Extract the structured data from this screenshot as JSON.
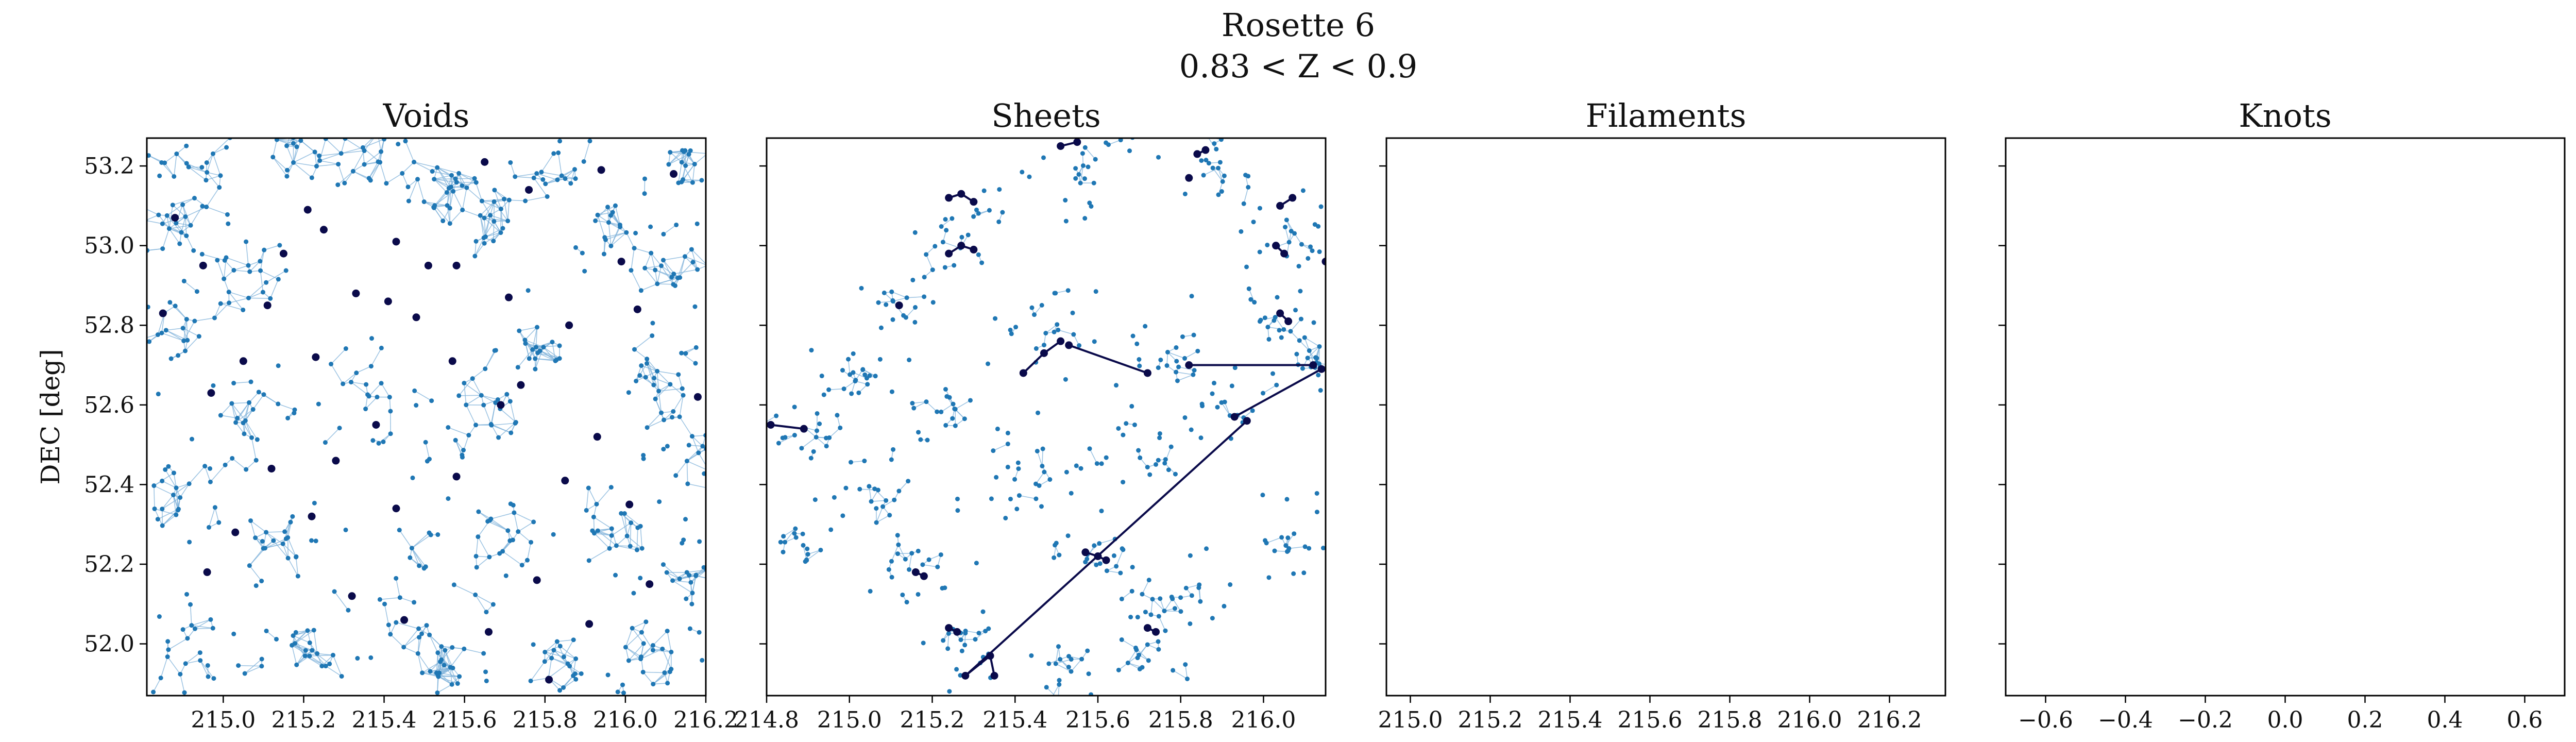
{
  "figure": {
    "title_line1": "Rosette 6",
    "title_line2": "0.83 < Z < 0.9"
  },
  "colors": {
    "galaxy": "#1f77b4",
    "link": "#7fb2da",
    "highlight": "#0a0a4a",
    "frame": "#000000"
  },
  "chart_data": [
    {
      "type": "scatter",
      "panel": "Voids",
      "title": "Voids",
      "xlabel": "",
      "ylabel": "DEC [deg]",
      "xlim": [
        214.81,
        216.2
      ],
      "ylim": [
        51.87,
        53.27
      ],
      "xticks": [
        215.0,
        215.2,
        215.4,
        215.6,
        215.8,
        216.0,
        216.2
      ],
      "xtick_labels": [
        "215.0",
        "215.2",
        "215.4",
        "215.6",
        "215.8",
        "216.0",
        "216.2"
      ],
      "yticks": [
        52.0,
        52.2,
        52.4,
        52.6,
        52.8,
        53.0,
        53.2
      ],
      "ytick_labels": [
        "52.0",
        "52.2",
        "52.4",
        "52.6",
        "52.8",
        "53.0",
        "53.2"
      ],
      "clusters": [
        [
          214.93,
          53.19,
          0.07
        ],
        [
          214.86,
          53.02,
          0.06
        ],
        [
          215.05,
          52.92,
          0.06
        ],
        [
          215.18,
          53.23,
          0.05
        ],
        [
          215.38,
          53.22,
          0.05
        ],
        [
          215.62,
          53.08,
          0.07
        ],
        [
          215.57,
          53.15,
          0.05
        ],
        [
          215.96,
          53.05,
          0.06
        ],
        [
          216.13,
          52.93,
          0.06
        ],
        [
          216.15,
          53.2,
          0.05
        ],
        [
          215.83,
          53.2,
          0.04
        ],
        [
          214.89,
          52.78,
          0.05
        ],
        [
          215.08,
          52.58,
          0.06
        ],
        [
          215.35,
          52.62,
          0.07
        ],
        [
          215.63,
          52.55,
          0.08
        ],
        [
          215.78,
          52.74,
          0.05
        ],
        [
          216.08,
          52.66,
          0.06
        ],
        [
          216.15,
          52.45,
          0.07
        ],
        [
          214.9,
          52.36,
          0.07
        ],
        [
          215.16,
          52.25,
          0.06
        ],
        [
          215.5,
          52.15,
          0.1
        ],
        [
          215.7,
          52.28,
          0.05
        ],
        [
          215.96,
          52.27,
          0.06
        ],
        [
          214.92,
          52.0,
          0.08
        ],
        [
          215.2,
          51.96,
          0.05
        ],
        [
          215.55,
          51.93,
          0.06
        ],
        [
          215.85,
          51.95,
          0.05
        ],
        [
          216.08,
          51.98,
          0.07
        ],
        [
          216.15,
          52.16,
          0.06
        ]
      ],
      "highlight": [
        [
          214.88,
          53.07
        ],
        [
          214.95,
          52.95
        ],
        [
          215.25,
          53.04
        ],
        [
          215.33,
          52.88
        ],
        [
          215.43,
          53.01
        ],
        [
          215.48,
          52.82
        ],
        [
          215.58,
          52.95
        ],
        [
          215.71,
          52.87
        ],
        [
          215.86,
          52.8
        ],
        [
          216.03,
          52.84
        ],
        [
          216.12,
          53.18
        ],
        [
          215.94,
          53.19
        ],
        [
          215.76,
          53.14
        ],
        [
          215.21,
          53.09
        ],
        [
          215.05,
          52.71
        ],
        [
          214.97,
          52.63
        ],
        [
          215.23,
          52.72
        ],
        [
          215.41,
          52.86
        ],
        [
          215.57,
          52.71
        ],
        [
          215.74,
          52.65
        ],
        [
          215.93,
          52.52
        ],
        [
          216.01,
          52.35
        ],
        [
          215.85,
          52.41
        ],
        [
          215.58,
          52.42
        ],
        [
          215.43,
          52.34
        ],
        [
          215.28,
          52.46
        ],
        [
          215.12,
          52.44
        ],
        [
          215.03,
          52.28
        ],
        [
          214.96,
          52.18
        ],
        [
          215.32,
          52.12
        ],
        [
          215.45,
          52.06
        ],
        [
          215.78,
          52.16
        ],
        [
          215.91,
          52.05
        ],
        [
          216.06,
          52.15
        ],
        [
          215.66,
          52.03
        ],
        [
          215.22,
          52.32
        ],
        [
          214.85,
          52.83
        ],
        [
          215.15,
          52.98
        ],
        [
          215.65,
          53.21
        ],
        [
          216.18,
          52.62
        ],
        [
          215.38,
          52.55
        ],
        [
          215.69,
          52.6
        ],
        [
          215.81,
          51.91
        ],
        [
          215.11,
          52.85
        ],
        [
          215.99,
          52.96
        ],
        [
          215.51,
          52.95
        ]
      ],
      "highlight_links": []
    },
    {
      "type": "scatter",
      "panel": "Sheets",
      "title": "Sheets",
      "xlabel": "",
      "ylabel": "",
      "xlim": [
        214.8,
        216.15
      ],
      "ylim": [
        51.87,
        53.27
      ],
      "xticks": [
        214.8,
        215.0,
        215.2,
        215.4,
        215.6,
        215.8,
        216.0
      ],
      "xtick_labels": [
        "214.8",
        "215.0",
        "215.2",
        "215.4",
        "215.6",
        "215.8",
        "216.0"
      ],
      "yticks": [
        52.0,
        52.2,
        52.4,
        52.6,
        52.8,
        53.0,
        53.2
      ],
      "ytick_labels": [],
      "clusters": [
        [
          215.3,
          53.05,
          0.06
        ],
        [
          215.56,
          53.2,
          0.06
        ],
        [
          215.88,
          53.2,
          0.05
        ],
        [
          216.08,
          53.02,
          0.06
        ],
        [
          215.48,
          52.78,
          0.06
        ],
        [
          215.76,
          52.72,
          0.05
        ],
        [
          216.04,
          52.82,
          0.05
        ],
        [
          215.12,
          52.85,
          0.04
        ],
        [
          214.88,
          52.55,
          0.05
        ],
        [
          215.0,
          52.68,
          0.05
        ],
        [
          215.4,
          52.42,
          0.08
        ],
        [
          215.68,
          52.45,
          0.06
        ],
        [
          215.9,
          52.58,
          0.05
        ],
        [
          216.12,
          52.7,
          0.04
        ],
        [
          215.6,
          52.23,
          0.05
        ],
        [
          215.15,
          52.2,
          0.05
        ],
        [
          215.8,
          52.12,
          0.06
        ],
        [
          215.28,
          51.98,
          0.06
        ],
        [
          215.72,
          52.0,
          0.05
        ],
        [
          215.52,
          51.93,
          0.04
        ],
        [
          215.05,
          52.38,
          0.05
        ],
        [
          214.88,
          52.25,
          0.03
        ],
        [
          216.08,
          52.25,
          0.05
        ],
        [
          215.22,
          52.6,
          0.05
        ]
      ],
      "highlight": [
        [
          215.24,
          53.12
        ],
        [
          215.27,
          53.13
        ],
        [
          215.3,
          53.11
        ],
        [
          215.24,
          52.98
        ],
        [
          215.27,
          53.0
        ],
        [
          215.3,
          52.99
        ],
        [
          215.51,
          53.25
        ],
        [
          215.55,
          53.26
        ],
        [
          215.84,
          53.23
        ],
        [
          215.86,
          53.24
        ],
        [
          215.82,
          53.17
        ],
        [
          216.04,
          53.1
        ],
        [
          216.07,
          53.12
        ],
        [
          216.03,
          53.0
        ],
        [
          216.05,
          52.98
        ],
        [
          216.04,
          52.83
        ],
        [
          216.06,
          52.81
        ],
        [
          216.15,
          52.96
        ],
        [
          215.12,
          52.85
        ],
        [
          215.42,
          52.68
        ],
        [
          215.47,
          52.73
        ],
        [
          215.51,
          52.76
        ],
        [
          215.53,
          52.75
        ],
        [
          215.72,
          52.68
        ],
        [
          215.82,
          52.7
        ],
        [
          216.12,
          52.7
        ],
        [
          216.14,
          52.69
        ],
        [
          215.93,
          52.57
        ],
        [
          215.96,
          52.56
        ],
        [
          214.81,
          52.55
        ],
        [
          214.89,
          52.54
        ],
        [
          215.57,
          52.23
        ],
        [
          215.6,
          52.22
        ],
        [
          215.62,
          52.21
        ],
        [
          215.16,
          52.18
        ],
        [
          215.18,
          52.17
        ],
        [
          215.24,
          52.04
        ],
        [
          215.26,
          52.03
        ],
        [
          215.28,
          51.92
        ],
        [
          215.34,
          51.97
        ],
        [
          215.35,
          51.92
        ],
        [
          215.72,
          52.04
        ],
        [
          215.74,
          52.03
        ]
      ],
      "highlight_links": [
        [
          0,
          1
        ],
        [
          1,
          2
        ],
        [
          3,
          4
        ],
        [
          4,
          5
        ],
        [
          6,
          7
        ],
        [
          8,
          9
        ],
        [
          11,
          12
        ],
        [
          13,
          14
        ],
        [
          15,
          16
        ],
        [
          19,
          20
        ],
        [
          20,
          21
        ],
        [
          22,
          23
        ],
        [
          24,
          25
        ],
        [
          26,
          27
        ],
        [
          29,
          30
        ],
        [
          31,
          32
        ],
        [
          32,
          33
        ],
        [
          34,
          35
        ],
        [
          36,
          37
        ],
        [
          39,
          40
        ],
        [
          38,
          39
        ],
        [
          41,
          42
        ],
        [
          28,
          38
        ]
      ]
    },
    {
      "type": "scatter",
      "panel": "Filaments",
      "title": "Filaments",
      "xlabel": "",
      "ylabel": "",
      "xlim": [
        214.94,
        216.34
      ],
      "ylim": [
        51.87,
        53.27
      ],
      "xticks": [
        215.0,
        215.2,
        215.4,
        215.6,
        215.8,
        216.0,
        216.2
      ],
      "xtick_labels": [
        "215.0",
        "215.2",
        "215.4",
        "215.6",
        "215.8",
        "216.0",
        "216.2"
      ],
      "yticks": [
        52.0,
        52.2,
        52.4,
        52.6,
        52.8,
        53.0,
        53.2
      ],
      "ytick_labels": [],
      "clusters": [],
      "highlight": [],
      "highlight_links": []
    },
    {
      "type": "scatter",
      "panel": "Knots",
      "title": "Knots",
      "xlabel": "",
      "ylabel": "",
      "xlim": [
        -0.7,
        0.7
      ],
      "ylim": [
        51.87,
        53.27
      ],
      "xticks": [
        -0.6,
        -0.4,
        -0.2,
        0.0,
        0.2,
        0.4,
        0.6
      ],
      "xtick_labels": [
        "−0.6",
        "−0.4",
        "−0.2",
        "0.0",
        "0.2",
        "0.4",
        "0.6"
      ],
      "yticks": [
        52.0,
        52.2,
        52.4,
        52.6,
        52.8,
        53.0,
        53.2
      ],
      "ytick_labels": [],
      "clusters": [],
      "highlight": [],
      "highlight_links": []
    }
  ]
}
